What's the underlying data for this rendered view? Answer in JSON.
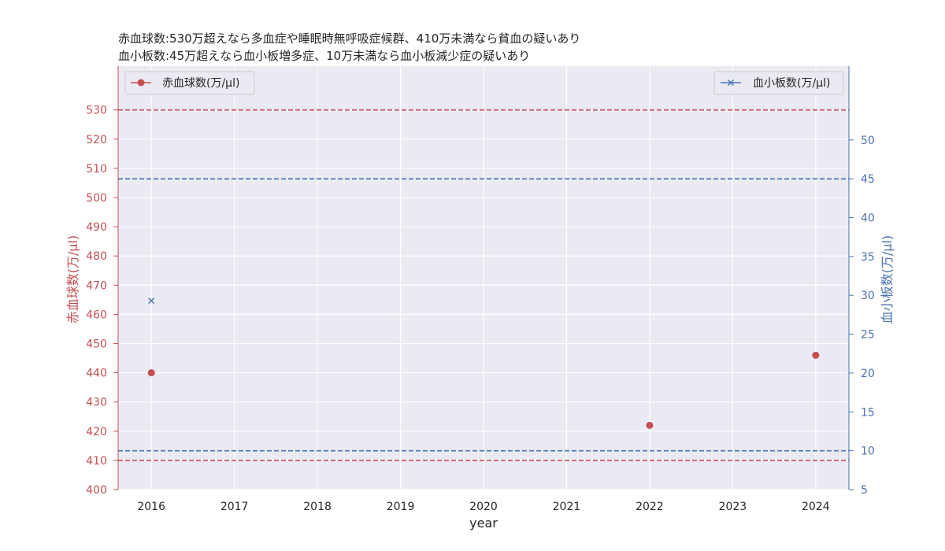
{
  "chart_data": {
    "type": "scatter",
    "title_lines": [
      "赤血球数:530万超えなら多血症や睡眠時無呼吸症候群、410万未満なら貧血の疑いあり",
      "血小板数:45万超えなら血小板増多症、10万未満なら血小板減少症の疑いあり"
    ],
    "xlabel": "year",
    "ylabel_left": "赤血球数(万/μl)",
    "ylabel_right": "血小板数(万/μl)",
    "x_ticks": [
      2016,
      2017,
      2018,
      2019,
      2020,
      2021,
      2022,
      2023,
      2024
    ],
    "xlim": [
      2015.6,
      2024.4
    ],
    "left_axis": {
      "ylim": [
        400,
        545
      ],
      "ticks": [
        400,
        410,
        420,
        430,
        440,
        450,
        460,
        470,
        480,
        490,
        500,
        510,
        520,
        530
      ]
    },
    "right_axis": {
      "ylim": [
        5,
        59.5
      ],
      "ticks": [
        5,
        10,
        15,
        20,
        25,
        30,
        35,
        40,
        45,
        50
      ]
    },
    "series": [
      {
        "name": "赤血球数(万/μl)",
        "axis": "left",
        "marker": "circle",
        "color": "#c44e52",
        "points": [
          {
            "x": 2016,
            "y": 440
          },
          {
            "x": 2022,
            "y": 422
          },
          {
            "x": 2024,
            "y": 446
          }
        ]
      },
      {
        "name": "血小板数(万/μl)",
        "axis": "right",
        "marker": "x",
        "color": "#4c72b0",
        "points": [
          {
            "x": 2016,
            "y": 29.3
          }
        ]
      }
    ],
    "reference_lines": [
      {
        "axis": "left",
        "y": 530,
        "color": "#c44e52",
        "style": "dashed"
      },
      {
        "axis": "left",
        "y": 410,
        "color": "#c44e52",
        "style": "dashed"
      },
      {
        "axis": "right",
        "y": 45,
        "color": "#4c72b0",
        "style": "dashed"
      },
      {
        "axis": "right",
        "y": 10,
        "color": "#4c72b0",
        "style": "dashed"
      }
    ],
    "grid": true,
    "legend_left_placement": "top-left",
    "legend_right_placement": "top-right",
    "colors": {
      "plot_bg": "#eaeaf2",
      "grid": "#ffffff",
      "left_axis": "#c44e52",
      "right_axis": "#4c72b0",
      "text": "#262626"
    }
  }
}
